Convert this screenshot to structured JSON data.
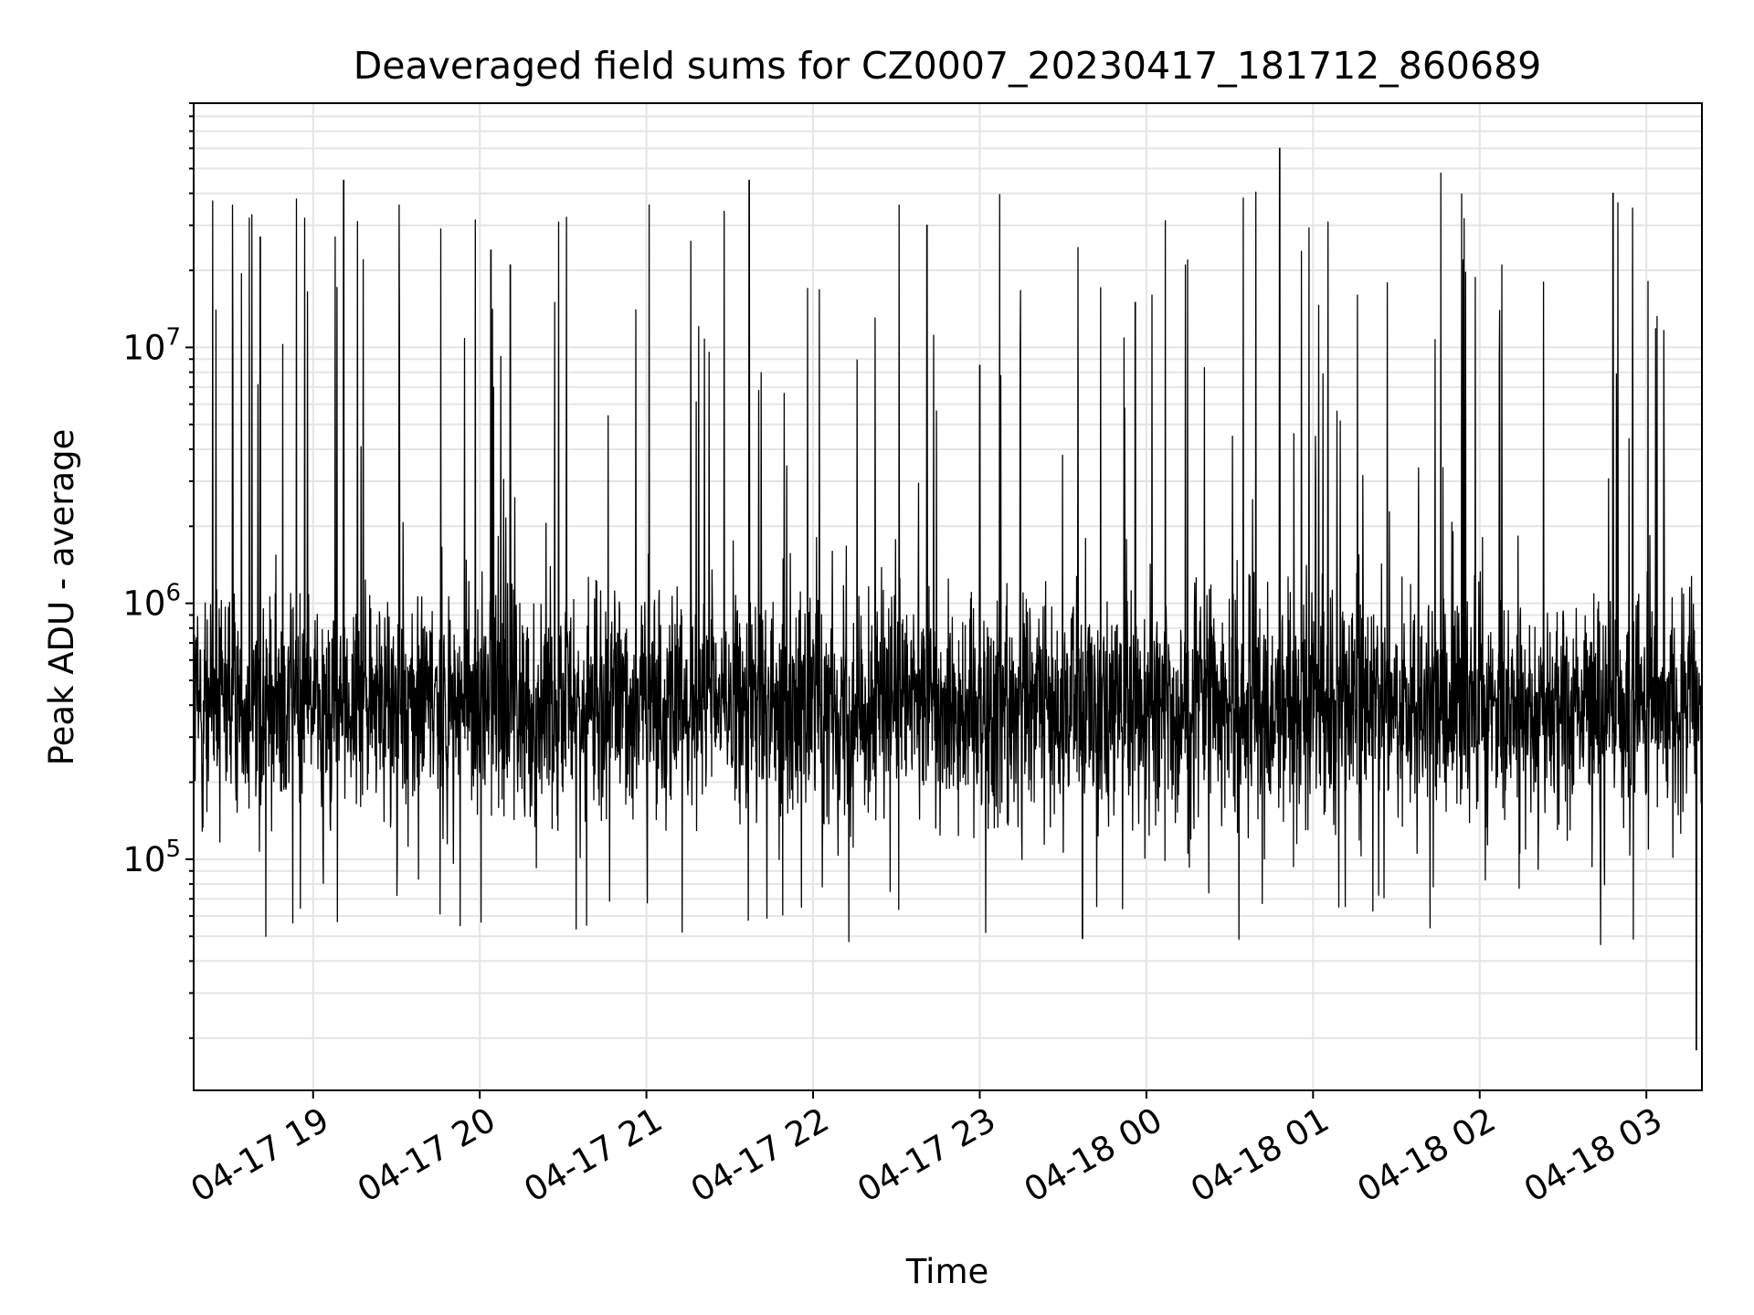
{
  "chart_data": {
    "type": "line",
    "title": "Deaveraged field sums for CZ0007_20230417_181712_860689",
    "xlabel": "Time",
    "ylabel": "Peak ADU - average",
    "x_range": [
      "2023-04-17 18:17",
      "2023-04-18 03:20"
    ],
    "x_ticks": [
      "04-17 19",
      "04-17 20",
      "04-17 21",
      "04-17 22",
      "04-17 23",
      "04-18 00",
      "04-18 01",
      "04-18 02",
      "04-18 03"
    ],
    "y_scale": "log",
    "ylim": [
      12500,
      90000000
    ],
    "y_ticks": [
      {
        "base": "10",
        "exp": "5",
        "value": 100000
      },
      {
        "base": "10",
        "exp": "6",
        "value": 1000000
      },
      {
        "base": "10",
        "exp": "7",
        "value": 10000000
      }
    ],
    "grid": true,
    "line_color": "#000000",
    "typical_range": [
      150000,
      1100000
    ],
    "peaks": [
      {
        "x": "2023-04-17 18:17",
        "y": 4500000
      },
      {
        "x": "2023-04-17 18:25",
        "y": 14000000
      },
      {
        "x": "2023-04-17 18:31",
        "y": 36000000
      },
      {
        "x": "2023-04-17 18:38",
        "y": 33000000
      },
      {
        "x": "2023-04-17 18:41",
        "y": 27000000
      },
      {
        "x": "2023-04-17 18:43",
        "y": 50000
      },
      {
        "x": "2023-04-17 18:54",
        "y": 38000000
      },
      {
        "x": "2023-04-17 18:57",
        "y": 32000000
      },
      {
        "x": "2023-04-17 19:08",
        "y": 27000000
      },
      {
        "x": "2023-04-17 19:11",
        "y": 45000000
      },
      {
        "x": "2023-04-17 19:16",
        "y": 31000000
      },
      {
        "x": "2023-04-17 19:18",
        "y": 22000000
      },
      {
        "x": "2023-04-17 19:31",
        "y": 36000000
      },
      {
        "x": "2023-04-17 19:46",
        "y": 29000000
      },
      {
        "x": "2023-04-17 19:53",
        "y": 55000
      },
      {
        "x": "2023-04-17 20:04",
        "y": 24000000
      },
      {
        "x": "2023-04-17 20:11",
        "y": 21000000
      },
      {
        "x": "2023-04-17 20:27",
        "y": 15000000
      },
      {
        "x": "2023-04-17 21:01",
        "y": 36000000
      },
      {
        "x": "2023-04-17 21:16",
        "y": 26000000
      },
      {
        "x": "2023-04-17 21:28",
        "y": 34000000
      },
      {
        "x": "2023-04-17 21:37",
        "y": 45000000
      },
      {
        "x": "2023-04-17 21:58",
        "y": 17000000
      },
      {
        "x": "2023-04-17 22:31",
        "y": 36000000
      },
      {
        "x": "2023-04-17 22:41",
        "y": 30000000
      },
      {
        "x": "2023-04-17 23:00",
        "y": 8500000
      },
      {
        "x": "2023-04-17 23:37",
        "y": 49000
      },
      {
        "x": "2023-04-17 23:56",
        "y": 15000000
      },
      {
        "x": "2023-04-18 00:02",
        "y": 16000000
      },
      {
        "x": "2023-04-18 00:14",
        "y": 21000000
      },
      {
        "x": "2023-04-18 00:31",
        "y": 4500000
      },
      {
        "x": "2023-04-18 00:48",
        "y": 60000000
      },
      {
        "x": "2023-04-18 01:16",
        "y": 16000000
      },
      {
        "x": "2023-04-18 01:46",
        "y": 48000000
      },
      {
        "x": "2023-04-18 01:54",
        "y": 22000000
      },
      {
        "x": "2023-04-18 02:08",
        "y": 21000000
      },
      {
        "x": "2023-04-18 02:23",
        "y": 18000000
      },
      {
        "x": "2023-04-18 02:48",
        "y": 40000000
      },
      {
        "x": "2023-04-18 02:55",
        "y": 35000000
      },
      {
        "x": "2023-04-18 03:18",
        "y": 18000
      }
    ]
  }
}
